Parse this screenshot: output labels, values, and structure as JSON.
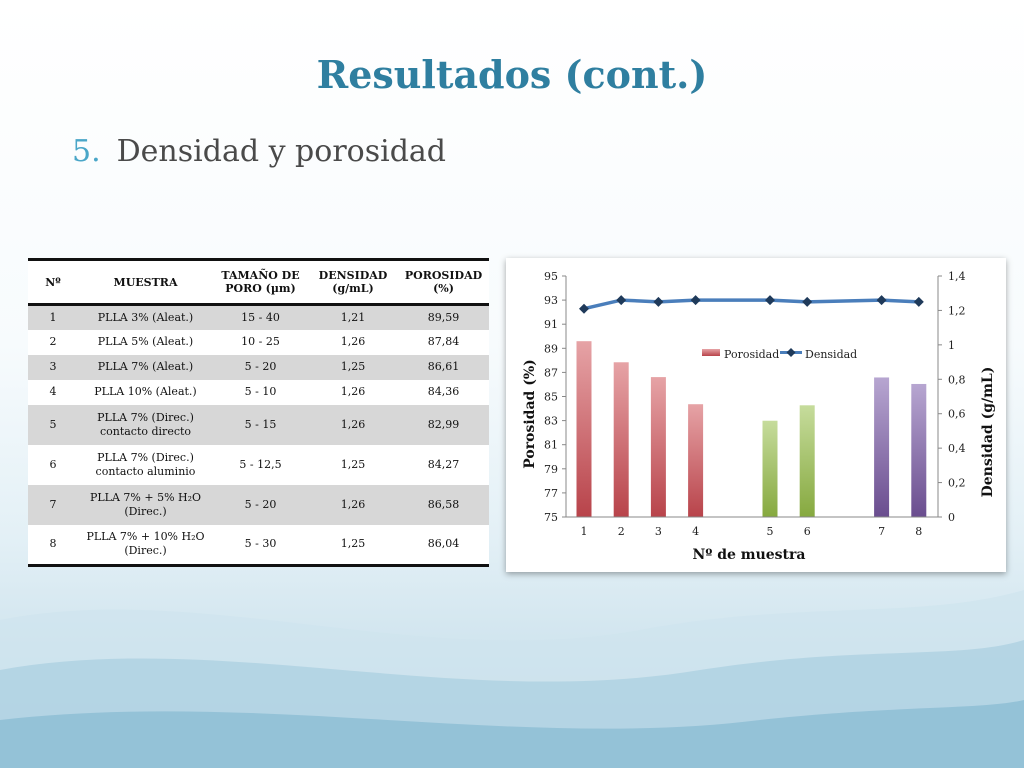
{
  "slide": {
    "title": "Resultados (cont.)",
    "section_number": "5.",
    "section_title": "Densidad y porosidad",
    "footnote": "",
    "colors": {
      "title": "#2f7fa0",
      "bullet": "#4aa6c8"
    }
  },
  "table": {
    "headers": [
      "Nº",
      "MUESTRA",
      "TAMAÑO DE PORO (µm)",
      "DENSIDAD (g/mL)",
      "POROSIDAD (%)"
    ],
    "rows": [
      [
        "1",
        "PLLA 3% (Aleat.)",
        "15 - 40",
        "1,21",
        "89,59"
      ],
      [
        "2",
        "PLLA 5% (Aleat.)",
        "10 - 25",
        "1,26",
        "87,84"
      ],
      [
        "3",
        "PLLA 7% (Aleat.)",
        "5 - 20",
        "1,25",
        "86,61"
      ],
      [
        "4",
        "PLLA 10% (Aleat.)",
        "5 - 10",
        "1,26",
        "84,36"
      ],
      [
        "5",
        "PLLA 7% (Direc.) contacto directo",
        "5 - 15",
        "1,26",
        "82,99"
      ],
      [
        "6",
        "PLLA 7% (Direc.) contacto aluminio",
        "5 - 12,5",
        "1,25",
        "84,27"
      ],
      [
        "7",
        "PLLA 7% + 5% H₂O (Direc.)",
        "5 - 20",
        "1,26",
        "86,58"
      ],
      [
        "8",
        "PLLA 7% + 10% H₂O (Direc.)",
        "5 - 30",
        "1,25",
        "86,04"
      ]
    ]
  },
  "chart_data": {
    "type": "bar",
    "title": "",
    "xlabel": "Nº de muestra",
    "ylabel": "Porosidad (%)",
    "y2label": "Densidad (g/mL)",
    "x": [
      1,
      2,
      3,
      4,
      5,
      6,
      7,
      8
    ],
    "x_tick_labels": [
      "1",
      "2",
      "3",
      "4",
      "5",
      "6",
      "7",
      "8"
    ],
    "ylim": [
      75,
      95
    ],
    "y_ticks": [
      "75",
      "77",
      "79",
      "81",
      "83",
      "85",
      "87",
      "89",
      "91",
      "93",
      "95"
    ],
    "y2lim": [
      0,
      1.4
    ],
    "y2_ticks": [
      "0",
      "0,2",
      "0,4",
      "0,6",
      "0,8",
      "1",
      "1,2",
      "1,4"
    ],
    "legend_position": "upper-right",
    "grid": false,
    "series": [
      {
        "name": "Porosidad",
        "type": "bar",
        "axis": "left",
        "values": [
          89.59,
          87.84,
          86.61,
          84.36,
          82.99,
          84.27,
          86.58,
          86.04
        ],
        "colors": [
          "#b8434a",
          "#b8434a",
          "#b8434a",
          "#b8434a",
          "#86a93f",
          "#86a93f",
          "#6a4d8f",
          "#6a4d8f"
        ]
      },
      {
        "name": "Densidad",
        "type": "line",
        "axis": "right",
        "values": [
          1.21,
          1.26,
          1.25,
          1.26,
          1.26,
          1.25,
          1.26,
          1.25
        ],
        "color": "#4a7ebb",
        "marker_color": "#1f3a5a"
      }
    ]
  }
}
